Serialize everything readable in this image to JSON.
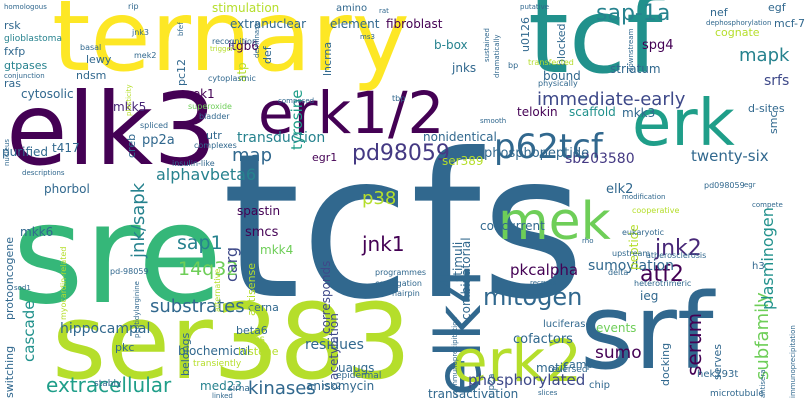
{
  "words": [
    {
      "text": "tcfs",
      "color": "#31688e"
    },
    {
      "text": "sre",
      "color": "#35b779"
    },
    {
      "text": "ternary",
      "color": "#fde725"
    },
    {
      "text": "tcf",
      "color": "#21918c"
    },
    {
      "text": "elk3",
      "color": "#440154"
    },
    {
      "text": "ser383",
      "color": "#b5de2b"
    },
    {
      "text": "srf",
      "color": "#31688e"
    },
    {
      "text": "erk1/2",
      "color": "#440154"
    },
    {
      "text": "erk",
      "color": "#1f9e89"
    },
    {
      "text": "elk4",
      "color": "#31688e"
    },
    {
      "text": "mek",
      "color": "#6ece58"
    },
    {
      "text": "erk2",
      "color": "#b5de2b"
    },
    {
      "text": "p62tcf",
      "color": "#31688e"
    },
    {
      "text": "pd98059",
      "color": "#443983"
    },
    {
      "text": "sap-1a",
      "color": "#26828e"
    },
    {
      "text": "mitogen",
      "color": "#31688e"
    },
    {
      "text": "extracellular",
      "color": "#1f9e89"
    },
    {
      "text": "substrates",
      "color": "#31688e"
    },
    {
      "text": "kinases",
      "color": "#31688e"
    },
    {
      "text": "immediate-early",
      "color": "#3e4989"
    },
    {
      "text": "serum",
      "color": "#440154"
    },
    {
      "text": "jnk/sapk",
      "color": "#26828e"
    },
    {
      "text": "subfamily",
      "color": "#6ece58"
    },
    {
      "text": "alphavbeta6",
      "color": "#26828e"
    },
    {
      "text": "14q32",
      "color": "#6ece58"
    },
    {
      "text": "jnk2",
      "color": "#482878"
    },
    {
      "text": "mapk",
      "color": "#26828e"
    },
    {
      "text": "jnk1",
      "color": "#440154"
    },
    {
      "text": "sap1",
      "color": "#26828e"
    },
    {
      "text": "atf2",
      "color": "#440154"
    },
    {
      "text": "cascade",
      "color": "#21918c"
    },
    {
      "text": "plasminogen",
      "color": "#21918c"
    },
    {
      "text": "sumo",
      "color": "#440154"
    },
    {
      "text": "phosphorylated",
      "color": "#3e4989"
    },
    {
      "text": "p38",
      "color": "#b5de2b"
    },
    {
      "text": "map",
      "color": "#31688e"
    },
    {
      "text": "twenty-six",
      "color": "#31688e"
    },
    {
      "text": "sb203580",
      "color": "#443983"
    },
    {
      "text": "phosphopeptide",
      "color": "#31688e"
    },
    {
      "text": "tyrosine",
      "color": "#1f9e89"
    },
    {
      "text": "transduction",
      "color": "#26828e"
    },
    {
      "text": "sumoylation",
      "color": "#31688e"
    },
    {
      "text": "pkcalpha",
      "color": "#440154"
    },
    {
      "text": "carg",
      "color": "#3e4989"
    },
    {
      "text": "residues",
      "color": "#31688e"
    },
    {
      "text": "hippocampal",
      "color": "#31688e"
    },
    {
      "text": "srfs",
      "color": "#3e4989"
    },
    {
      "text": "mkk3",
      "color": "#31688e"
    },
    {
      "text": "mkk5",
      "color": "#482878"
    },
    {
      "text": "cytosolic",
      "color": "#31688e"
    },
    {
      "text": "spastin",
      "color": "#440154"
    },
    {
      "text": "cofactors",
      "color": "#31688e"
    },
    {
      "text": "transactivation",
      "color": "#31688e"
    },
    {
      "text": "anisomycin",
      "color": "#31688e"
    },
    {
      "text": "med23",
      "color": "#26828e"
    },
    {
      "text": "acetylation",
      "color": "#3e4989"
    },
    {
      "text": "uaugs",
      "color": "#31688e"
    },
    {
      "text": "motif",
      "color": "#31688e"
    },
    {
      "text": "smcs",
      "color": "#440154"
    },
    {
      "text": "ieg",
      "color": "#31688e"
    },
    {
      "text": "stimuli",
      "color": "#31688e"
    },
    {
      "text": "events",
      "color": "#6ece58"
    },
    {
      "text": "telokin",
      "color": "#440154"
    },
    {
      "text": "scaffold",
      "color": "#21918c"
    },
    {
      "text": "peptide",
      "color": "#b5de2b"
    },
    {
      "text": "corresponds",
      "color": "#3e4989"
    },
    {
      "text": "concurrent",
      "color": "#31688e"
    },
    {
      "text": "combinatorial",
      "color": "#31688e"
    },
    {
      "text": "elk2",
      "color": "#31688e"
    },
    {
      "text": "ser389",
      "color": "#b5de2b"
    },
    {
      "text": "bound",
      "color": "#31688e"
    },
    {
      "text": "striatum",
      "color": "#31688e"
    },
    {
      "text": "jnks",
      "color": "#31688e"
    },
    {
      "text": "spg4",
      "color": "#440154"
    },
    {
      "text": "b-box",
      "color": "#26828e"
    },
    {
      "text": "u0126",
      "color": "#31688e"
    },
    {
      "text": "blocked",
      "color": "#31688e"
    },
    {
      "text": "nef",
      "color": "#31688e"
    },
    {
      "text": "egf",
      "color": "#31688e"
    },
    {
      "text": "mcf-7",
      "color": "#31688e"
    },
    {
      "text": "cognate",
      "color": "#b5de2b"
    },
    {
      "text": "dephosphorylation",
      "color": "#31688e"
    },
    {
      "text": "stimulation",
      "color": "#b5de2b"
    },
    {
      "text": "extranuclear",
      "color": "#31688e"
    },
    {
      "text": "element",
      "color": "#31688e"
    },
    {
      "text": "fibroblast",
      "color": "#440154"
    },
    {
      "text": "amino",
      "color": "#31688e"
    },
    {
      "text": "rsk",
      "color": "#31688e"
    },
    {
      "text": "glioblastoma",
      "color": "#26828e"
    },
    {
      "text": "fxfp",
      "color": "#31688e"
    },
    {
      "text": "gtpases",
      "color": "#26828e"
    },
    {
      "text": "ras",
      "color": "#31688e"
    },
    {
      "text": "lewy",
      "color": "#31688e"
    },
    {
      "text": "ndsm",
      "color": "#31688e"
    },
    {
      "text": "itgb6",
      "color": "#440154"
    },
    {
      "text": "pc12",
      "color": "#31688e"
    },
    {
      "text": "def",
      "color": "#31688e"
    },
    {
      "text": "lncrna",
      "color": "#31688e"
    },
    {
      "text": "atp",
      "color": "#b5de2b"
    },
    {
      "text": "mek1",
      "color": "#440154"
    },
    {
      "text": "utr",
      "color": "#31688e"
    },
    {
      "text": "pp2a",
      "color": "#31688e"
    },
    {
      "text": "creb",
      "color": "#31688e"
    },
    {
      "text": "egr1",
      "color": "#440154"
    },
    {
      "text": "nonidentical",
      "color": "#31688e"
    },
    {
      "text": "purified",
      "color": "#31688e"
    },
    {
      "text": "t417",
      "color": "#31688e"
    },
    {
      "text": "phorbol",
      "color": "#31688e"
    },
    {
      "text": "mkk6",
      "color": "#31688e"
    },
    {
      "text": "mkk4",
      "color": "#6ece58"
    },
    {
      "text": "protooncogene",
      "color": "#31688e"
    },
    {
      "text": "pkc",
      "color": "#31688e"
    },
    {
      "text": "biochemical",
      "color": "#31688e"
    },
    {
      "text": "histone",
      "color": "#b5de2b"
    },
    {
      "text": "fos",
      "color": "#b5de2b"
    },
    {
      "text": "beta6",
      "color": "#31688e"
    },
    {
      "text": "cerna",
      "color": "#31688e"
    },
    {
      "text": "antisense",
      "color": "#b5de2b"
    },
    {
      "text": "jip",
      "color": "#31688e"
    },
    {
      "text": "h3",
      "color": "#31688e"
    },
    {
      "text": "smc",
      "color": "#31688e"
    },
    {
      "text": "d-sites",
      "color": "#31688e"
    },
    {
      "text": "serves",
      "color": "#31688e"
    },
    {
      "text": "hek293t",
      "color": "#31688e"
    },
    {
      "text": "docking",
      "color": "#31688e"
    },
    {
      "text": "camp",
      "color": "#31688e"
    },
    {
      "text": "chip",
      "color": "#31688e"
    },
    {
      "text": "luciferase",
      "color": "#31688e"
    },
    {
      "text": "belongs",
      "color": "#31688e"
    },
    {
      "text": "switching",
      "color": "#31688e"
    },
    {
      "text": "cip2a",
      "color": "#31688e"
    },
    {
      "text": "epidermal",
      "color": "#31688e"
    },
    {
      "text": "rsk2",
      "color": "#31688e"
    },
    {
      "text": "reversed",
      "color": "#31688e"
    },
    {
      "text": "microtubule",
      "color": "#31688e"
    },
    {
      "text": "transiently",
      "color": "#b5de2b"
    },
    {
      "text": "sirna",
      "color": "#31688e"
    },
    {
      "text": "stably",
      "color": "#31688e"
    },
    {
      "text": "recognition",
      "color": "#31688e"
    },
    {
      "text": "cytoplasmic",
      "color": "#31688e"
    },
    {
      "text": "physically",
      "color": "#31688e"
    },
    {
      "text": "transfected",
      "color": "#b5de2b"
    },
    {
      "text": "rip",
      "color": "#31688e"
    },
    {
      "text": "jnk3",
      "color": "#31688e"
    },
    {
      "text": "mek2",
      "color": "#31688e"
    },
    {
      "text": "basal",
      "color": "#31688e"
    },
    {
      "text": "conjunction",
      "color": "#31688e"
    },
    {
      "text": "homologous",
      "color": "#31688e"
    },
    {
      "text": "bfef",
      "color": "#31688e"
    },
    {
      "text": "tbp",
      "color": "#31688e"
    },
    {
      "text": "superoxide",
      "color": "#6ece58"
    },
    {
      "text": "bladder",
      "color": "#31688e"
    },
    {
      "text": "spliced",
      "color": "#31688e"
    },
    {
      "text": "complexes",
      "color": "#31688e"
    },
    {
      "text": "insulin-like",
      "color": "#31688e"
    },
    {
      "text": "myocardin-related",
      "color": "#b5de2b"
    },
    {
      "text": "pd-98059",
      "color": "#31688e"
    },
    {
      "text": "alternative",
      "color": "#b5de2b"
    },
    {
      "text": "programmes",
      "color": "#31688e"
    },
    {
      "text": "conjugation",
      "color": "#31688e"
    },
    {
      "text": "hairpin",
      "color": "#31688e"
    },
    {
      "text": "peptidylarginine",
      "color": "#31688e"
    },
    {
      "text": "cooperative",
      "color": "#b5de2b"
    },
    {
      "text": "pd098059",
      "color": "#31688e"
    },
    {
      "text": "eukaryotic",
      "color": "#31688e"
    },
    {
      "text": "upstream",
      "color": "#31688e"
    },
    {
      "text": "atherosclerosis",
      "color": "#31688e"
    },
    {
      "text": "delta",
      "color": "#31688e"
    },
    {
      "text": "recruits",
      "color": "#31688e"
    },
    {
      "text": "heterotrimeric",
      "color": "#31688e"
    },
    {
      "text": "immunoprecipitation",
      "color": "#31688e"
    },
    {
      "text": "coimmunoprecipitation",
      "color": "#31688e"
    },
    {
      "text": "slices",
      "color": "#31688e"
    },
    {
      "text": "antisera",
      "color": "#31688e"
    },
    {
      "text": "linked",
      "color": "#31688e"
    },
    {
      "text": "plasticity",
      "color": "#b5de2b"
    },
    {
      "text": "nucleus",
      "color": "#31688e"
    },
    {
      "text": "sod1",
      "color": "#31688e"
    },
    {
      "text": "descriptions",
      "color": "#31688e"
    },
    {
      "text": "deiminase",
      "color": "#31688e"
    },
    {
      "text": "triggers",
      "color": "#b5de2b"
    },
    {
      "text": "composed",
      "color": "#31688e"
    },
    {
      "text": "smooth",
      "color": "#31688e"
    },
    {
      "text": "sustained",
      "color": "#31688e"
    },
    {
      "text": "dramatically",
      "color": "#31688e"
    },
    {
      "text": "bp",
      "color": "#31688e"
    },
    {
      "text": "rat",
      "color": "#31688e"
    },
    {
      "text": "putative",
      "color": "#31688e"
    },
    {
      "text": "downstream",
      "color": "#31688e"
    },
    {
      "text": "compete",
      "color": "#31688e"
    },
    {
      "text": "rho",
      "color": "#31688e"
    },
    {
      "text": "modification",
      "color": "#31688e"
    },
    {
      "text": "egr",
      "color": "#31688e"
    },
    {
      "text": "ms3",
      "color": "#31688e"
    }
  ]
}
